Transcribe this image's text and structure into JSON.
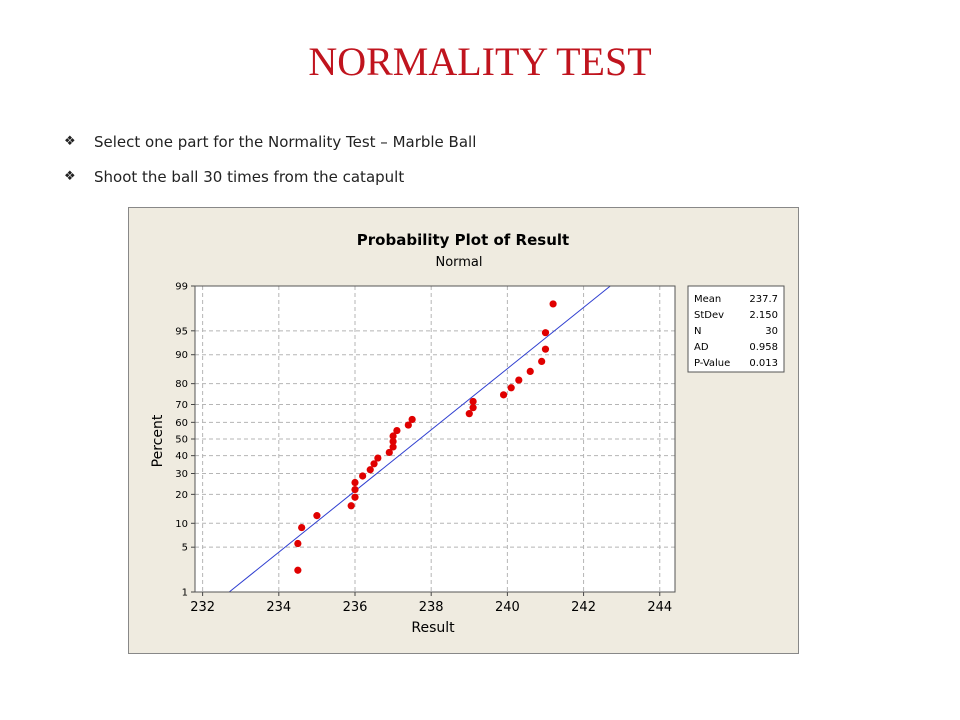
{
  "slide": {
    "title": "NORMALITY TEST",
    "bullets": [
      "Select one part for the Normality Test – Marble Ball",
      "Shoot the ball 30 times from the catapult"
    ],
    "bullet_icon": "diamond-bullet-icon"
  },
  "colors": {
    "title": "#c0141e",
    "chart_background": "#efebe0",
    "points": "#e00000",
    "fit_line": "#2f3fd0"
  },
  "chart_data": {
    "type": "scatter",
    "title": "Probability Plot of Result",
    "subtitle": "Normal",
    "xlabel": "Result",
    "ylabel": "Percent",
    "xlim": [
      231.8,
      244.4
    ],
    "ylim": [
      1,
      99
    ],
    "y_scale": "normal-probability",
    "x_ticks": [
      232,
      234,
      236,
      238,
      240,
      242,
      244
    ],
    "y_ticks": [
      1,
      5,
      10,
      20,
      30,
      40,
      50,
      60,
      70,
      80,
      90,
      95,
      99
    ],
    "grid": true,
    "fit_line": {
      "mean": 237.7,
      "stdev": 2.15
    },
    "points": [
      {
        "x": 234.5,
        "y": 2.3
      },
      {
        "x": 234.5,
        "y": 5.6
      },
      {
        "x": 234.6,
        "y": 8.9
      },
      {
        "x": 235.0,
        "y": 12.2
      },
      {
        "x": 235.9,
        "y": 15.5
      },
      {
        "x": 236.0,
        "y": 18.8
      },
      {
        "x": 236.0,
        "y": 22.1
      },
      {
        "x": 236.0,
        "y": 25.4
      },
      {
        "x": 236.2,
        "y": 28.7
      },
      {
        "x": 236.4,
        "y": 32.0
      },
      {
        "x": 236.5,
        "y": 35.3
      },
      {
        "x": 236.6,
        "y": 38.6
      },
      {
        "x": 236.9,
        "y": 41.9
      },
      {
        "x": 237.0,
        "y": 45.2
      },
      {
        "x": 237.0,
        "y": 48.5
      },
      {
        "x": 237.0,
        "y": 51.8
      },
      {
        "x": 237.1,
        "y": 55.1
      },
      {
        "x": 237.4,
        "y": 58.4
      },
      {
        "x": 237.5,
        "y": 61.7
      },
      {
        "x": 239.0,
        "y": 65.0
      },
      {
        "x": 239.1,
        "y": 68.3
      },
      {
        "x": 239.1,
        "y": 71.6
      },
      {
        "x": 239.9,
        "y": 74.9
      },
      {
        "x": 240.1,
        "y": 78.2
      },
      {
        "x": 240.3,
        "y": 81.5
      },
      {
        "x": 240.6,
        "y": 84.8
      },
      {
        "x": 240.9,
        "y": 88.1
      },
      {
        "x": 241.0,
        "y": 91.4
      },
      {
        "x": 241.0,
        "y": 94.7
      },
      {
        "x": 241.2,
        "y": 98.0
      }
    ],
    "stats": [
      {
        "label": "Mean",
        "value": "237.7"
      },
      {
        "label": "StDev",
        "value": "2.150"
      },
      {
        "label": "N",
        "value": "30"
      },
      {
        "label": "AD",
        "value": "0.958"
      },
      {
        "label": "P-Value",
        "value": "0.013"
      }
    ]
  }
}
